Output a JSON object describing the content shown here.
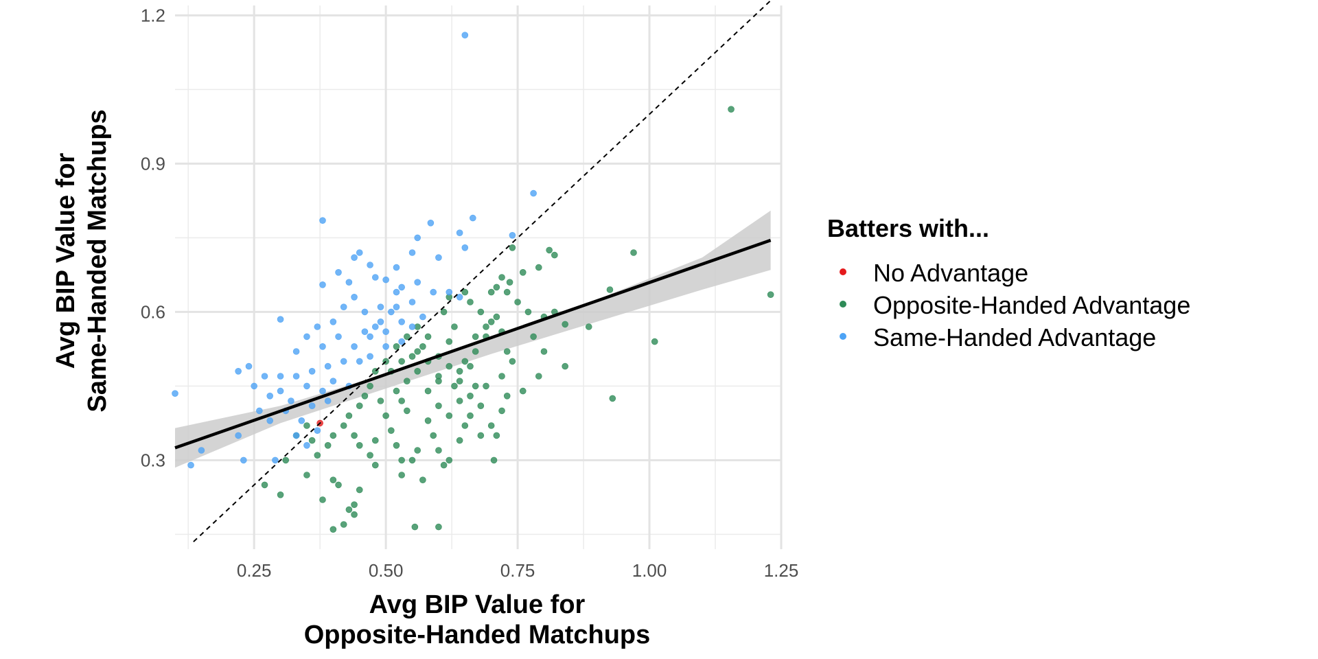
{
  "chart_data": {
    "type": "scatter",
    "title": "",
    "xlabel": [
      "Avg BIP Value for",
      "Opposite-Handed Matchups"
    ],
    "ylabel": [
      "Avg BIP Value for",
      "Same-Handed Matchups"
    ],
    "xlim": [
      0.1,
      1.25
    ],
    "ylim": [
      0.12,
      1.22
    ],
    "xticks": [
      0.25,
      0.5,
      0.75,
      1.0,
      1.25
    ],
    "xtick_labels": [
      "0.25",
      "0.50",
      "0.75",
      "1.00",
      "1.25"
    ],
    "yticks": [
      0.3,
      0.6,
      0.9,
      1.2
    ],
    "ytick_labels": [
      "0.3",
      "0.6",
      "0.9",
      "1.2"
    ],
    "grid": true,
    "legend_position": "right",
    "legend": {
      "title": "Batters with...",
      "entries": [
        "No Advantage",
        "Opposite-Handed Advantage",
        "Same-Handed Advantage"
      ]
    },
    "colors": {
      "No Advantage": "#e41a1c",
      "Opposite-Handed Advantage": "#2e8b57",
      "Same-Handed Advantage": "#4da3f5",
      "fit_line": "#000000",
      "ribbon": "#cccccc"
    },
    "reference_line": {
      "type": "identity",
      "style": "dashed"
    },
    "fit_line": {
      "x": [
        0.1,
        1.23
      ],
      "y": [
        0.325,
        0.745
      ]
    },
    "ribbon": {
      "x": [
        0.1,
        0.3,
        0.5,
        0.7,
        0.9,
        1.1,
        1.23
      ],
      "lower": [
        0.285,
        0.375,
        0.445,
        0.515,
        0.58,
        0.645,
        0.685
      ],
      "upper": [
        0.365,
        0.41,
        0.475,
        0.545,
        0.625,
        0.71,
        0.805
      ]
    },
    "series": [
      {
        "name": "No Advantage",
        "points": [
          [
            0.375,
            0.375
          ]
        ]
      },
      {
        "name": "Opposite-Handed Advantage",
        "points": [
          [
            1.155,
            1.01
          ],
          [
            1.23,
            0.635
          ],
          [
            0.97,
            0.72
          ],
          [
            1.01,
            0.54
          ],
          [
            0.93,
            0.425
          ],
          [
            0.925,
            0.645
          ],
          [
            0.81,
            0.725
          ],
          [
            0.82,
            0.715
          ],
          [
            0.79,
            0.69
          ],
          [
            0.74,
            0.73
          ],
          [
            0.76,
            0.68
          ],
          [
            0.735,
            0.66
          ],
          [
            0.72,
            0.67
          ],
          [
            0.71,
            0.65
          ],
          [
            0.7,
            0.64
          ],
          [
            0.73,
            0.64
          ],
          [
            0.75,
            0.62
          ],
          [
            0.77,
            0.6
          ],
          [
            0.8,
            0.59
          ],
          [
            0.84,
            0.575
          ],
          [
            0.885,
            0.57
          ],
          [
            0.82,
            0.6
          ],
          [
            0.78,
            0.55
          ],
          [
            0.8,
            0.52
          ],
          [
            0.84,
            0.49
          ],
          [
            0.79,
            0.47
          ],
          [
            0.76,
            0.44
          ],
          [
            0.73,
            0.43
          ],
          [
            0.72,
            0.4
          ],
          [
            0.7,
            0.37
          ],
          [
            0.71,
            0.35
          ],
          [
            0.68,
            0.35
          ],
          [
            0.705,
            0.3
          ],
          [
            0.65,
            0.37
          ],
          [
            0.64,
            0.42
          ],
          [
            0.67,
            0.45
          ],
          [
            0.66,
            0.49
          ],
          [
            0.67,
            0.52
          ],
          [
            0.69,
            0.55
          ],
          [
            0.7,
            0.58
          ],
          [
            0.68,
            0.6
          ],
          [
            0.66,
            0.62
          ],
          [
            0.65,
            0.64
          ],
          [
            0.62,
            0.63
          ],
          [
            0.61,
            0.6
          ],
          [
            0.63,
            0.57
          ],
          [
            0.62,
            0.54
          ],
          [
            0.6,
            0.51
          ],
          [
            0.62,
            0.49
          ],
          [
            0.6,
            0.46
          ],
          [
            0.58,
            0.44
          ],
          [
            0.6,
            0.41
          ],
          [
            0.58,
            0.38
          ],
          [
            0.59,
            0.35
          ],
          [
            0.6,
            0.32
          ],
          [
            0.62,
            0.3
          ],
          [
            0.56,
            0.32
          ],
          [
            0.55,
            0.3
          ],
          [
            0.53,
            0.3
          ],
          [
            0.52,
            0.33
          ],
          [
            0.51,
            0.36
          ],
          [
            0.5,
            0.39
          ],
          [
            0.49,
            0.42
          ],
          [
            0.52,
            0.44
          ],
          [
            0.54,
            0.46
          ],
          [
            0.56,
            0.48
          ],
          [
            0.55,
            0.51
          ],
          [
            0.57,
            0.53
          ],
          [
            0.58,
            0.55
          ],
          [
            0.56,
            0.57
          ],
          [
            0.54,
            0.55
          ],
          [
            0.52,
            0.53
          ],
          [
            0.5,
            0.5
          ],
          [
            0.48,
            0.48
          ],
          [
            0.47,
            0.45
          ],
          [
            0.46,
            0.43
          ],
          [
            0.45,
            0.41
          ],
          [
            0.43,
            0.39
          ],
          [
            0.42,
            0.37
          ],
          [
            0.44,
            0.35
          ],
          [
            0.45,
            0.33
          ],
          [
            0.47,
            0.31
          ],
          [
            0.48,
            0.34
          ],
          [
            0.4,
            0.35
          ],
          [
            0.39,
            0.33
          ],
          [
            0.37,
            0.31
          ],
          [
            0.36,
            0.34
          ],
          [
            0.35,
            0.37
          ],
          [
            0.33,
            0.35
          ],
          [
            0.31,
            0.3
          ],
          [
            0.3,
            0.23
          ],
          [
            0.27,
            0.25
          ],
          [
            0.35,
            0.27
          ],
          [
            0.38,
            0.22
          ],
          [
            0.4,
            0.26
          ],
          [
            0.41,
            0.25
          ],
          [
            0.43,
            0.2
          ],
          [
            0.44,
            0.19
          ],
          [
            0.44,
            0.21
          ],
          [
            0.45,
            0.24
          ],
          [
            0.42,
            0.17
          ],
          [
            0.555,
            0.165
          ],
          [
            0.6,
            0.165
          ],
          [
            0.4,
            0.16
          ],
          [
            0.48,
            0.29
          ],
          [
            0.53,
            0.27
          ],
          [
            0.57,
            0.26
          ],
          [
            0.61,
            0.29
          ],
          [
            0.64,
            0.34
          ],
          [
            0.66,
            0.39
          ],
          [
            0.68,
            0.41
          ],
          [
            0.64,
            0.46
          ],
          [
            0.62,
            0.39
          ],
          [
            0.54,
            0.4
          ],
          [
            0.53,
            0.42
          ],
          [
            0.51,
            0.48
          ],
          [
            0.53,
            0.5
          ],
          [
            0.56,
            0.52
          ],
          [
            0.58,
            0.5
          ],
          [
            0.6,
            0.47
          ],
          [
            0.63,
            0.45
          ],
          [
            0.64,
            0.48
          ],
          [
            0.65,
            0.5
          ],
          [
            0.67,
            0.55
          ],
          [
            0.69,
            0.57
          ],
          [
            0.71,
            0.59
          ],
          [
            0.72,
            0.56
          ],
          [
            0.73,
            0.52
          ],
          [
            0.74,
            0.5
          ],
          [
            0.72,
            0.47
          ],
          [
            0.69,
            0.45
          ],
          [
            0.66,
            0.43
          ]
        ]
      },
      {
        "name": "Same-Handed Advantage",
        "points": [
          [
            0.65,
            1.16
          ],
          [
            0.78,
            0.84
          ],
          [
            0.665,
            0.79
          ],
          [
            0.585,
            0.78
          ],
          [
            0.64,
            0.76
          ],
          [
            0.56,
            0.75
          ],
          [
            0.74,
            0.755
          ],
          [
            0.38,
            0.785
          ],
          [
            0.65,
            0.73
          ],
          [
            0.6,
            0.71
          ],
          [
            0.55,
            0.72
          ],
          [
            0.52,
            0.69
          ],
          [
            0.45,
            0.72
          ],
          [
            0.44,
            0.71
          ],
          [
            0.47,
            0.695
          ],
          [
            0.41,
            0.68
          ],
          [
            0.43,
            0.66
          ],
          [
            0.38,
            0.655
          ],
          [
            0.48,
            0.67
          ],
          [
            0.5,
            0.665
          ],
          [
            0.53,
            0.65
          ],
          [
            0.56,
            0.66
          ],
          [
            0.59,
            0.64
          ],
          [
            0.62,
            0.64
          ],
          [
            0.64,
            0.63
          ],
          [
            0.55,
            0.62
          ],
          [
            0.52,
            0.61
          ],
          [
            0.49,
            0.61
          ],
          [
            0.46,
            0.6
          ],
          [
            0.44,
            0.63
          ],
          [
            0.42,
            0.61
          ],
          [
            0.4,
            0.58
          ],
          [
            0.37,
            0.57
          ],
          [
            0.35,
            0.55
          ],
          [
            0.38,
            0.53
          ],
          [
            0.41,
            0.55
          ],
          [
            0.44,
            0.53
          ],
          [
            0.47,
            0.55
          ],
          [
            0.5,
            0.56
          ],
          [
            0.53,
            0.54
          ],
          [
            0.55,
            0.57
          ],
          [
            0.57,
            0.59
          ],
          [
            0.5,
            0.53
          ],
          [
            0.47,
            0.51
          ],
          [
            0.45,
            0.5
          ],
          [
            0.42,
            0.5
          ],
          [
            0.39,
            0.49
          ],
          [
            0.36,
            0.48
          ],
          [
            0.33,
            0.47
          ],
          [
            0.3,
            0.47
          ],
          [
            0.27,
            0.47
          ],
          [
            0.25,
            0.45
          ],
          [
            0.24,
            0.49
          ],
          [
            0.22,
            0.48
          ],
          [
            0.3,
            0.585
          ],
          [
            0.33,
            0.52
          ],
          [
            0.35,
            0.45
          ],
          [
            0.38,
            0.44
          ],
          [
            0.4,
            0.46
          ],
          [
            0.43,
            0.45
          ],
          [
            0.32,
            0.42
          ],
          [
            0.28,
            0.43
          ],
          [
            0.31,
            0.4
          ],
          [
            0.34,
            0.38
          ],
          [
            0.36,
            0.41
          ],
          [
            0.39,
            0.42
          ],
          [
            0.28,
            0.38
          ],
          [
            0.3,
            0.44
          ],
          [
            0.26,
            0.4
          ],
          [
            0.33,
            0.35
          ],
          [
            0.35,
            0.33
          ],
          [
            0.37,
            0.36
          ],
          [
            0.22,
            0.35
          ],
          [
            0.23,
            0.3
          ],
          [
            0.29,
            0.3
          ],
          [
            0.15,
            0.32
          ],
          [
            0.13,
            0.29
          ],
          [
            0.1,
            0.435
          ],
          [
            0.48,
            0.57
          ],
          [
            0.51,
            0.6
          ],
          [
            0.53,
            0.58
          ],
          [
            0.46,
            0.56
          ],
          [
            0.49,
            0.58
          ],
          [
            0.52,
            0.64
          ]
        ]
      }
    ]
  }
}
